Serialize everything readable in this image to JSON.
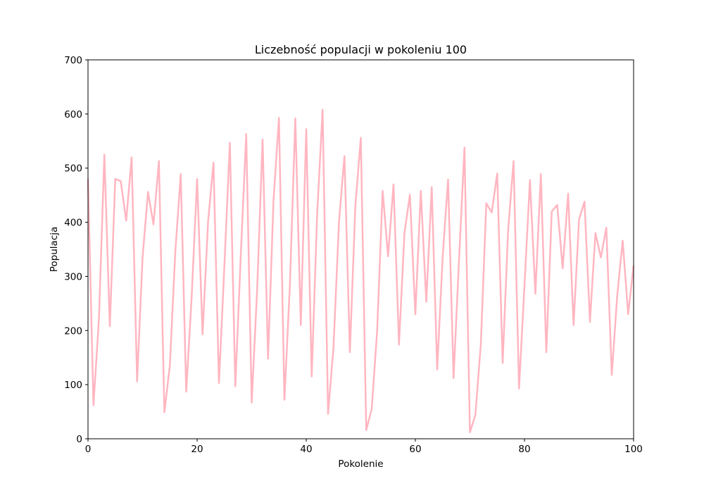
{
  "chart_data": {
    "type": "line",
    "title": "Liczebność populacji w pokoleniu 100",
    "xlabel": "Pokolenie",
    "ylabel": "Populacja",
    "xlim": [
      0,
      100
    ],
    "ylim": [
      0,
      700
    ],
    "xticks": [
      0,
      20,
      40,
      60,
      80,
      100
    ],
    "yticks": [
      0,
      100,
      200,
      300,
      400,
      500,
      600,
      700
    ],
    "grid": false,
    "line_color": "#ffb6c1",
    "x": [
      0,
      1,
      2,
      3,
      4,
      5,
      6,
      7,
      8,
      9,
      10,
      11,
      12,
      13,
      14,
      15,
      16,
      17,
      18,
      19,
      20,
      21,
      22,
      23,
      24,
      25,
      26,
      27,
      28,
      29,
      30,
      31,
      32,
      33,
      34,
      35,
      36,
      37,
      38,
      39,
      40,
      41,
      42,
      43,
      44,
      45,
      46,
      47,
      48,
      49,
      50,
      51,
      52,
      53,
      54,
      55,
      56,
      57,
      58,
      59,
      60,
      61,
      62,
      63,
      64,
      65,
      66,
      67,
      68,
      69,
      70,
      71,
      72,
      73,
      74,
      75,
      76,
      77,
      78,
      79,
      80,
      81,
      82,
      83,
      84,
      85,
      86,
      87,
      88,
      89,
      90,
      91,
      92,
      93,
      94,
      95,
      96,
      97,
      98,
      99,
      100
    ],
    "values": [
      480,
      62,
      220,
      525,
      208,
      480,
      476,
      403,
      520,
      106,
      335,
      456,
      396,
      513,
      49,
      135,
      345,
      489,
      87,
      262,
      480,
      193,
      400,
      510,
      103,
      320,
      547,
      97,
      338,
      563,
      67,
      275,
      553,
      148,
      440,
      593,
      72,
      283,
      592,
      210,
      572,
      115,
      415,
      608,
      46,
      170,
      400,
      522,
      160,
      430,
      556,
      16,
      55,
      200,
      458,
      337,
      470,
      174,
      380,
      451,
      230,
      458,
      253,
      465,
      128,
      335,
      479,
      112,
      330,
      538,
      12,
      44,
      175,
      435,
      418,
      490,
      140,
      385,
      513,
      93,
      283,
      478,
      268,
      489,
      160,
      420,
      432,
      315,
      453,
      210,
      405,
      438,
      216,
      380,
      335,
      390,
      118,
      265,
      366,
      230,
      320
    ]
  }
}
